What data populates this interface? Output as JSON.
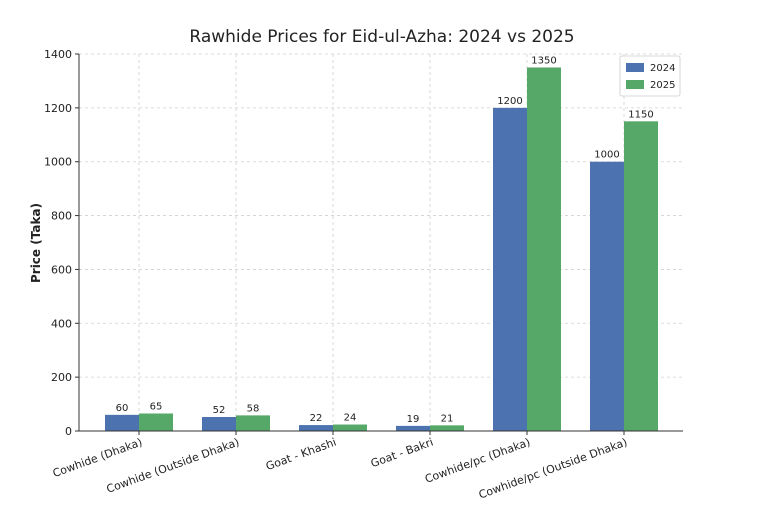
{
  "chart_data": {
    "type": "bar",
    "title": "Rawhide Prices for Eid-ul-Azha: 2024 vs 2025",
    "xlabel": "",
    "ylabel": "Price (Taka)",
    "ylim": [
      0,
      1400
    ],
    "yticks": [
      0,
      200,
      400,
      600,
      800,
      1000,
      1200,
      1400
    ],
    "grid": true,
    "legend_position": "top-right",
    "categories": [
      "Cowhide (Dhaka)",
      "Cowhide (Outside Dhaka)",
      "Goat - Khashi",
      "Goat - Bakri",
      "Cowhide/pc (Dhaka)",
      "Cowhide/pc (Outside Dhaka)"
    ],
    "series": [
      {
        "name": "2024",
        "color": "#4c72b0",
        "values": [
          60,
          52,
          22,
          19,
          1200,
          1000
        ]
      },
      {
        "name": "2025",
        "color": "#55a868",
        "values": [
          65,
          58,
          24,
          21,
          1350,
          1150
        ]
      }
    ]
  }
}
